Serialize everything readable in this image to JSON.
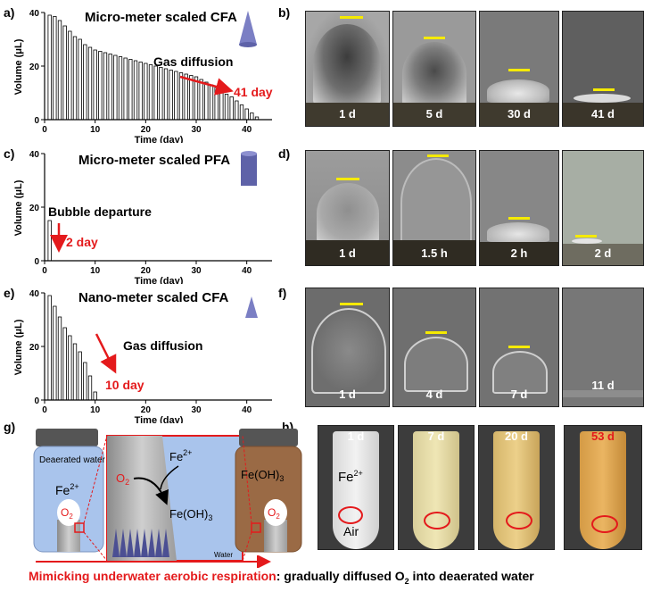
{
  "panels": {
    "a": {
      "label": "a)",
      "title": "Micro-meter scaled CFA",
      "annotation": "Gas diffusion",
      "day_label": "41 day",
      "chart_data": {
        "type": "bar",
        "xlabel": "Time (day)",
        "ylabel": "Volume (μL)",
        "xlim": [
          0,
          45
        ],
        "ylim": [
          0,
          40
        ],
        "xticks": [
          "0",
          "10",
          "20",
          "30",
          "40"
        ],
        "yticks": [
          "0",
          "20",
          "40"
        ],
        "x": [
          1,
          2,
          3,
          4,
          5,
          6,
          7,
          8,
          9,
          10,
          11,
          12,
          13,
          14,
          15,
          16,
          17,
          18,
          19,
          20,
          21,
          22,
          23,
          24,
          25,
          26,
          27,
          28,
          29,
          30,
          31,
          32,
          33,
          34,
          35,
          36,
          37,
          38,
          39,
          40,
          41,
          42
        ],
        "values": [
          39,
          38.5,
          37,
          35,
          33,
          31,
          30,
          28,
          27,
          26,
          25.5,
          25,
          24.5,
          24,
          23.5,
          23,
          22.5,
          22,
          21.5,
          21,
          20.5,
          20,
          19.5,
          19,
          18.5,
          18,
          17.5,
          17,
          16.5,
          16,
          15,
          14,
          13,
          12,
          11,
          9.5,
          8.5,
          7,
          5.5,
          4,
          2.5,
          1
        ]
      }
    },
    "b": {
      "label": "b)",
      "photos": [
        "1 d",
        "5 d",
        "30 d",
        "41 d"
      ]
    },
    "c": {
      "label": "c)",
      "title": "Micro-meter scaled PFA",
      "annotation": "Bubble departure",
      "day_label": "2 day",
      "chart_data": {
        "type": "bar",
        "xlabel": "Time (day)",
        "ylabel": "Volume (μL)",
        "xlim": [
          0,
          45
        ],
        "ylim": [
          0,
          40
        ],
        "xticks": [
          "0",
          "10",
          "20",
          "30",
          "40"
        ],
        "yticks": [
          "0",
          "20",
          "40"
        ],
        "x": [
          1
        ],
        "values": [
          15
        ]
      }
    },
    "d": {
      "label": "d)",
      "photos": [
        "1 d",
        "1.5 h",
        "2 h",
        "2 d"
      ]
    },
    "e": {
      "label": "e)",
      "title": "Nano-meter scaled CFA",
      "annotation": "Gas diffusion",
      "day_label": "10 day",
      "chart_data": {
        "type": "bar",
        "xlabel": "Time (day)",
        "ylabel": "Volume (μL)",
        "xlim": [
          0,
          45
        ],
        "ylim": [
          0,
          40
        ],
        "xticks": [
          "0",
          "10",
          "20",
          "30",
          "40"
        ],
        "yticks": [
          "0",
          "20",
          "40"
        ],
        "x": [
          1,
          2,
          3,
          4,
          5,
          6,
          7,
          8,
          9,
          10
        ],
        "values": [
          39,
          35,
          31,
          27,
          24,
          21,
          18,
          14,
          9,
          3
        ]
      }
    },
    "f": {
      "label": "f)",
      "photos": [
        "1 d",
        "4 d",
        "7 d",
        "11 d"
      ]
    },
    "g": {
      "label": "g)",
      "left_text": "Deaerated water",
      "left_ion": "Fe",
      "left_ion_sup": "2+",
      "left_gas": "O",
      "left_gas_sub": "2",
      "center_ion": "Fe",
      "center_ion_sup": "2+",
      "center_gas": "O",
      "center_gas_sub": "2",
      "center_product": "Fe(OH)",
      "center_product_sub": "3",
      "center_water": "Water",
      "right_product": "Fe(OH)",
      "right_product_sub": "3",
      "right_gas": "O",
      "right_gas_sub": "2"
    },
    "h": {
      "label": "h)",
      "tubes": [
        "1 d",
        "7 d",
        "20 d",
        "53 d"
      ],
      "ion": "Fe",
      "ion_sup": "2+",
      "air": "Air"
    }
  },
  "caption": {
    "red": "Mimicking underwater aerobic respiration",
    "black": ": gradually diffused O",
    "sub": "2",
    "tail": " into deaerated water"
  },
  "colors": {
    "accent_red": "#e41a1c",
    "bar_yellow": "#f5ea00",
    "cone_purple": "#7b7fc4",
    "water_blue": "#a9c4ec",
    "rust_brown": "#9a6a45"
  }
}
